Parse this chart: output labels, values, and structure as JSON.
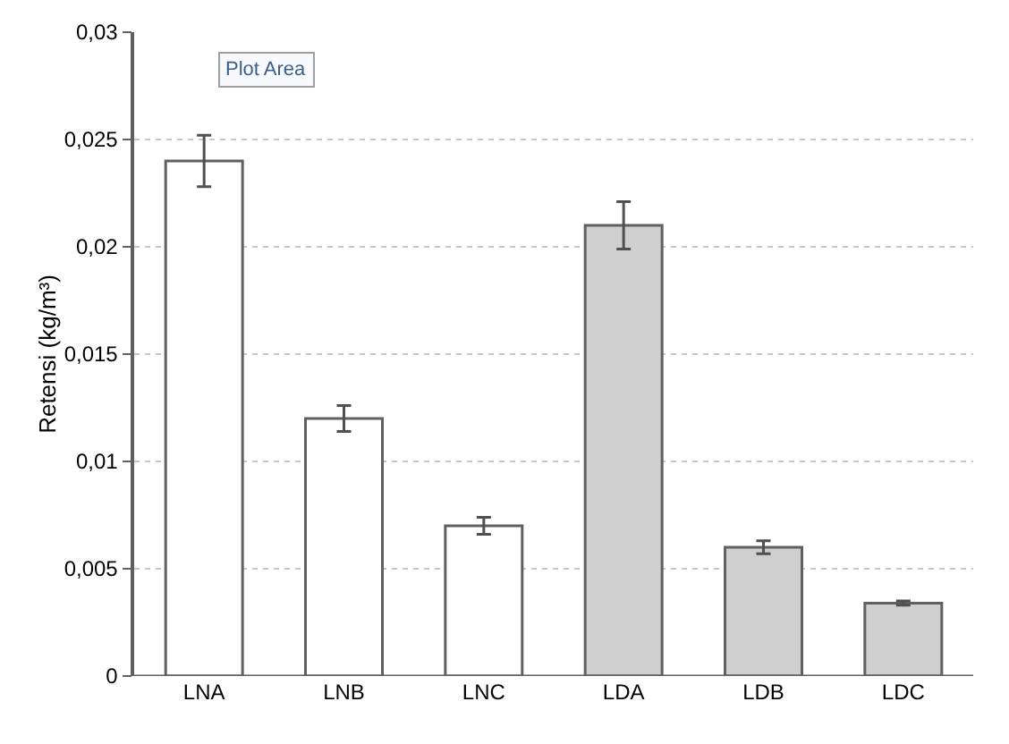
{
  "chart_data": {
    "type": "bar",
    "ylabel": "Retensi (kg/m³)",
    "categories": [
      "LNA",
      "LNB",
      "LNC",
      "LDA",
      "LDB",
      "LDC"
    ],
    "values": [
      0.024,
      0.012,
      0.007,
      0.021,
      0.006,
      0.0034
    ],
    "errors": [
      0.0012,
      0.0006,
      0.0004,
      0.0011,
      0.0003,
      0.0001
    ],
    "colors": [
      "#ffffff",
      "#ffffff",
      "#ffffff",
      "#d0cfd0",
      "#d0cfd0",
      "#d0cfd0"
    ],
    "ylim": [
      0,
      0.03
    ],
    "yticks": [
      {
        "value": 0,
        "label": "0"
      },
      {
        "value": 0.005,
        "label": "0,005"
      },
      {
        "value": 0.01,
        "label": "0,01"
      },
      {
        "value": 0.015,
        "label": "0,015"
      },
      {
        "value": 0.02,
        "label": "0,02"
      },
      {
        "value": 0.025,
        "label": "0,025"
      },
      {
        "value": 0.03,
        "label": "0,03"
      }
    ],
    "grid": "y",
    "annotations": [
      "Plot Area"
    ]
  }
}
